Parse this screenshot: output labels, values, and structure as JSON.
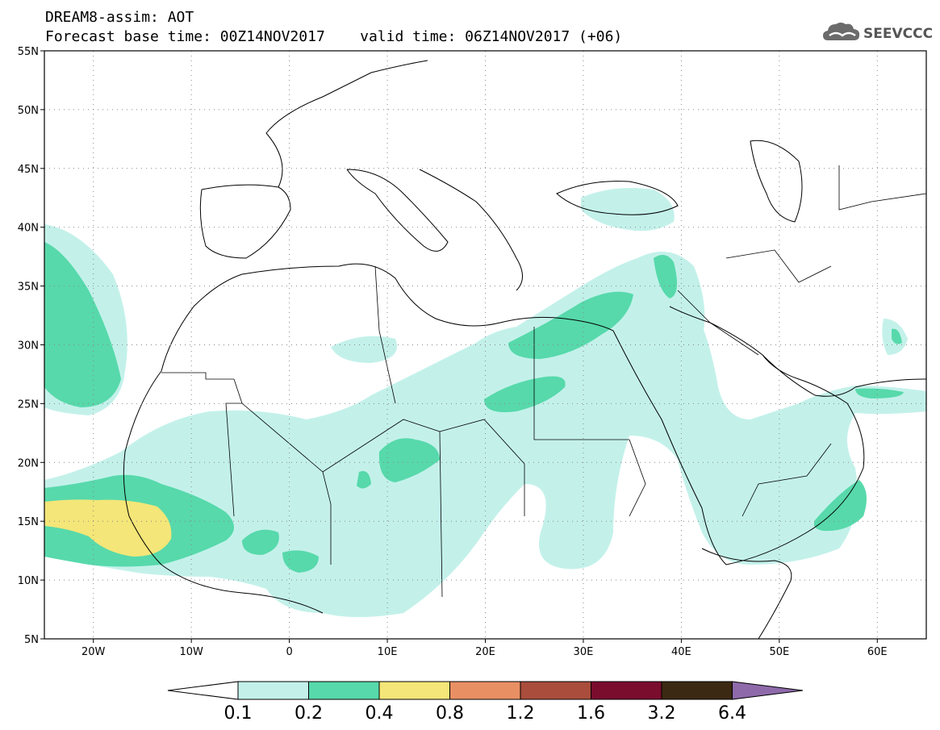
{
  "header": {
    "title_line1": "DREAM8-assim: AOT",
    "title_line2": "Forecast base time: 00Z14NOV2017    valid time: 06Z14NOV2017 (+06)"
  },
  "logo": {
    "text": "SEEVCCC",
    "icon": "cloud-icon"
  },
  "map": {
    "projection": "equirectangular",
    "lon_range": [
      -25,
      65
    ],
    "lat_range": [
      5,
      55
    ],
    "lat_ticks": [
      "5N",
      "10N",
      "15N",
      "20N",
      "25N",
      "30N",
      "35N",
      "40N",
      "45N",
      "50N",
      "55N"
    ],
    "lon_ticks": [
      "20W",
      "10W",
      "0",
      "10E",
      "20E",
      "30E",
      "40E",
      "50E",
      "60E"
    ],
    "gridlines": "dotted",
    "land_color": "#ffffff",
    "border_color": "#000000"
  },
  "legend": {
    "levels": [
      "0.1",
      "0.2",
      "0.4",
      "0.8",
      "1.2",
      "1.6",
      "3.2",
      "6.4"
    ],
    "colors": [
      "#c3f1ea",
      "#57d9ab",
      "#f4e678",
      "#e98f64",
      "#aa4d3c",
      "#7a0c2e",
      "#3c2913",
      "#8e6aaa"
    ],
    "under_color": "#ffffff"
  }
}
